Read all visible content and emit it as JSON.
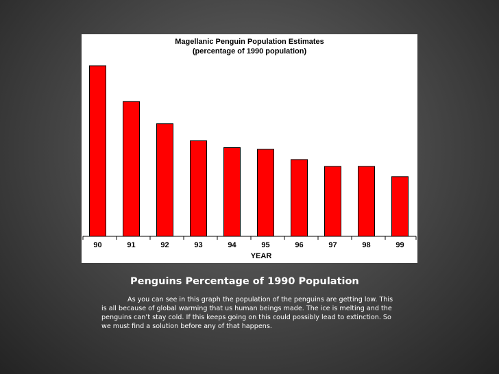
{
  "slide": {
    "heading": "Penguins Percentage of 1990 Population",
    "body": "As you can see in this graph the population of the penguins are getting low. This is all because of global warming that us human beings made.  The ice is melting and the penguins can’t stay cold.  If this keeps going on this could possibly lead to extinction.  So we must find a solution before any of that happens."
  },
  "chart_data": {
    "type": "bar",
    "title": "Magellanic Penguin Population Estimates",
    "subtitle": "(percentage of 1990 population)",
    "xlabel": "YEAR",
    "ylabel": "",
    "categories": [
      "90",
      "91",
      "92",
      "93",
      "94",
      "95",
      "96",
      "97",
      "98",
      "99"
    ],
    "values": [
      100,
      79,
      66,
      56,
      52,
      51,
      45,
      41,
      41,
      35
    ],
    "ylim": [
      0,
      100
    ],
    "grid": false,
    "legend": "none",
    "bar_color": "#ff0000",
    "bar_stroke": "#000000"
  }
}
